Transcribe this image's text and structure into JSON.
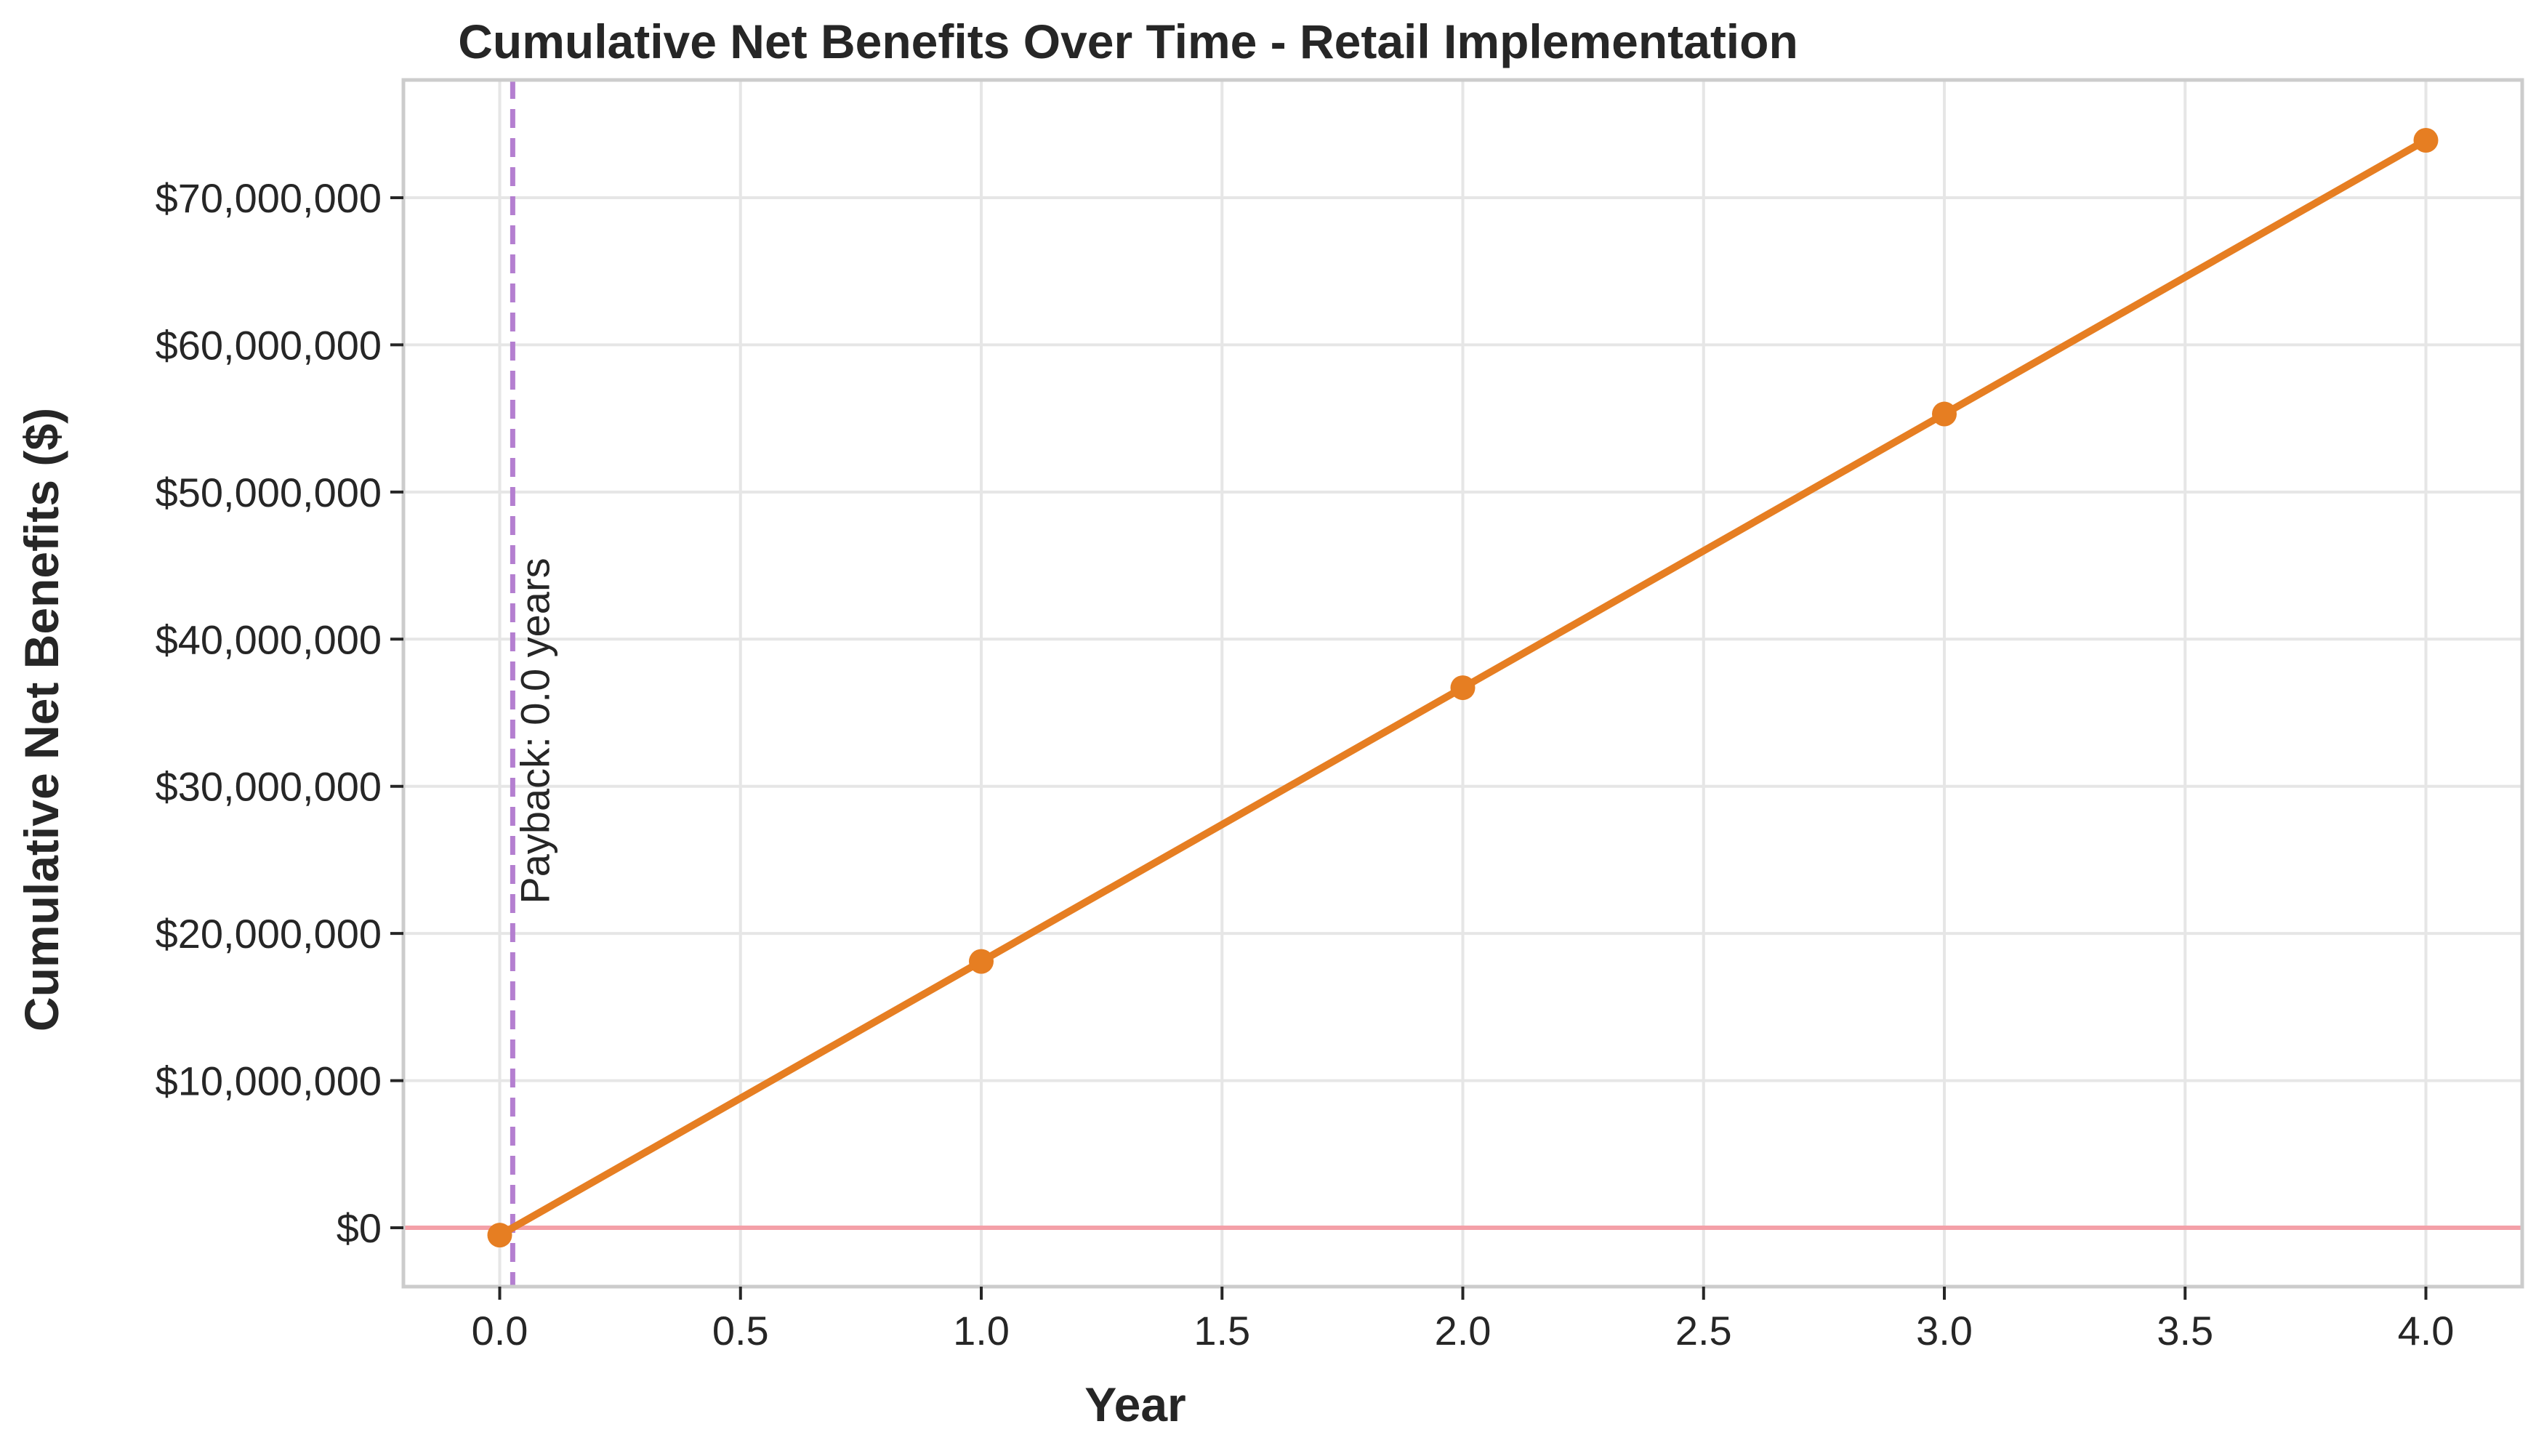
{
  "chart_data": {
    "type": "line",
    "title": "Cumulative Net Benefits Over Time - Retail Implementation",
    "xlabel": "Year",
    "ylabel": "Cumulative Net Benefits ($)",
    "xlim": [
      -0.2,
      4.2
    ],
    "ylim": [
      -4000000,
      78000000
    ],
    "x_ticks": [
      0.0,
      0.5,
      1.0,
      1.5,
      2.0,
      2.5,
      3.0,
      3.5,
      4.0
    ],
    "x_tick_labels": [
      "0.0",
      "0.5",
      "1.0",
      "1.5",
      "2.0",
      "2.5",
      "3.0",
      "3.5",
      "4.0"
    ],
    "y_ticks": [
      0,
      10000000,
      20000000,
      30000000,
      40000000,
      50000000,
      60000000,
      70000000
    ],
    "y_tick_labels": [
      "$0",
      "$10,000,000",
      "$20,000,000",
      "$30,000,000",
      "$40,000,000",
      "$50,000,000",
      "$60,000,000",
      "$70,000,000"
    ],
    "grid": true,
    "series": [
      {
        "x": [
          0,
          1,
          2,
          3,
          4
        ],
        "values": [
          -500000,
          18100000,
          36700000,
          55300000,
          73900000
        ],
        "color": "#e67e22",
        "marker": "circle"
      }
    ],
    "reference_lines": {
      "zero_line": {
        "y": 0,
        "color": "#f4a0a8"
      },
      "payback_line": {
        "x": 0.027,
        "color": "#b47fd0",
        "style": "dashed"
      }
    },
    "annotations": [
      {
        "text": "Payback: 0.0 years",
        "x": 0.027,
        "y": 22000000,
        "rotation": 90
      }
    ]
  }
}
